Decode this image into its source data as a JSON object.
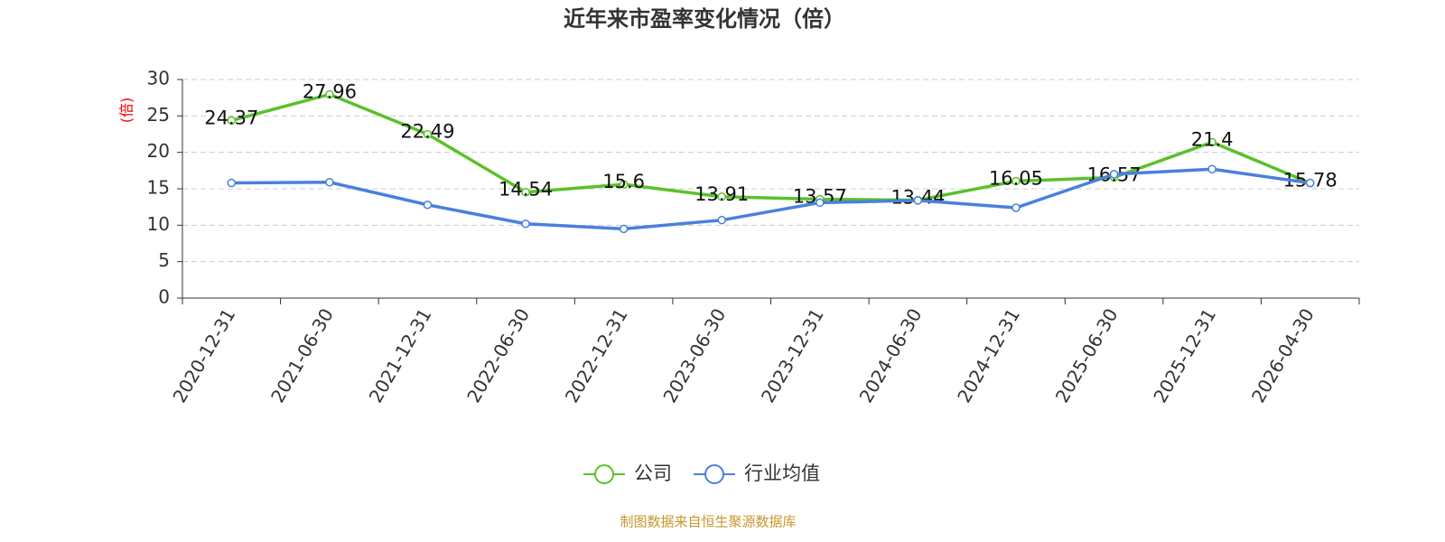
{
  "chart_data": {
    "type": "line",
    "title": "近年来市盈率变化情况（倍）",
    "y_label": "(倍)",
    "categories": [
      "2020-12-31",
      "2021-06-30",
      "2021-12-31",
      "2022-06-30",
      "2022-12-31",
      "2023-06-30",
      "2023-12-31",
      "2024-06-30",
      "2024-12-31",
      "2025-06-30",
      "2025-12-31",
      "2026-04-30"
    ],
    "series": [
      {
        "name": "公司",
        "color": "#5ac12a",
        "values": [
          24.37,
          27.96,
          22.49,
          14.54,
          15.6,
          13.91,
          13.57,
          13.44,
          16.05,
          16.57,
          21.4,
          15.78
        ]
      },
      {
        "name": "行业均值",
        "color": "#4a80de",
        "values": [
          15.8,
          15.9,
          12.8,
          10.2,
          9.5,
          10.7,
          13.1,
          13.4,
          12.4,
          17.0,
          17.7,
          15.8
        ]
      }
    ],
    "ylim": [
      0,
      30
    ],
    "yticks": [
      0,
      5,
      10,
      15,
      20,
      25,
      30
    ],
    "grid": true,
    "source": "制图数据来自恒生聚源数据库"
  }
}
